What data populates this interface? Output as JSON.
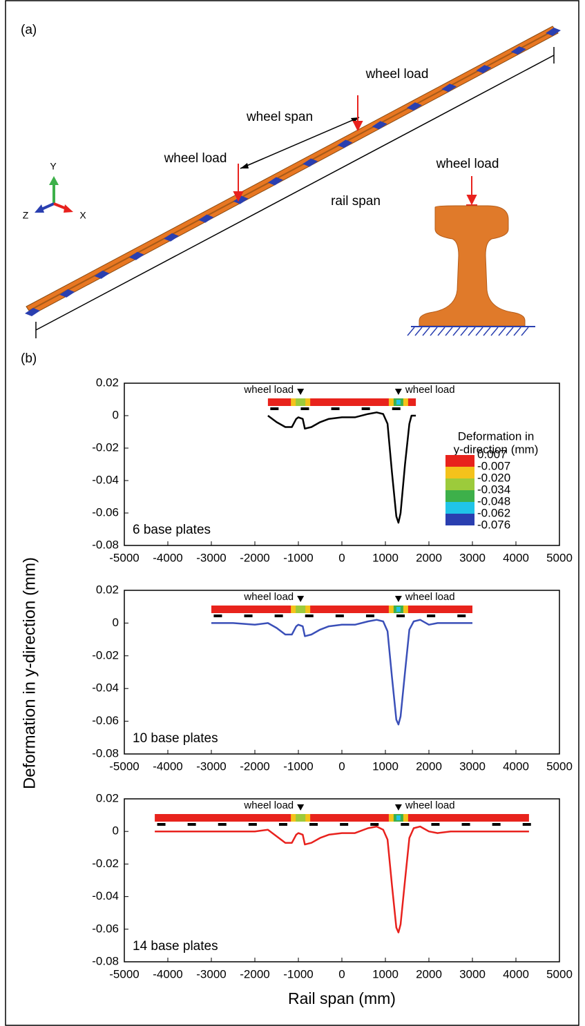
{
  "diagram": {
    "panel_label": "(a)",
    "labels": [
      "wheel load",
      "wheel span",
      "wheel load",
      "rail span",
      "wheel load"
    ],
    "axes": [
      "Y",
      "Z",
      "X"
    ]
  },
  "panel_b_label": "(b)",
  "figure": {
    "ylabel": "Deformation in y-direction (mm)",
    "xlabel": "Rail span (mm)"
  },
  "chart_data": [
    {
      "type": "line",
      "annotation": "6 base plates",
      "wheel_load_labels": [
        "wheel load",
        "wheel load"
      ],
      "x": [
        -1700,
        -1500,
        -1300,
        -1150,
        -1050,
        -1000,
        -900,
        -850,
        -700,
        -500,
        -300,
        0,
        300,
        600,
        800,
        950,
        1050,
        1150,
        1250,
        1300,
        1350,
        1450,
        1550,
        1600,
        1700
      ],
      "series": [
        {
          "color": "#000000",
          "values": [
            0,
            -0.004,
            -0.007,
            -0.007,
            -0.002,
            -0.001,
            -0.002,
            -0.008,
            -0.007,
            -0.004,
            -0.002,
            -0.001,
            -0.001,
            0.001,
            0.002,
            0.001,
            -0.005,
            -0.035,
            -0.062,
            -0.066,
            -0.06,
            -0.03,
            -0.005,
            0,
            0
          ]
        }
      ],
      "xlim": [
        -5000,
        5000
      ],
      "xticks": [
        -5000,
        -4000,
        -3000,
        -2000,
        -1000,
        0,
        1000,
        2000,
        3000,
        4000,
        5000
      ],
      "ylim": [
        -0.08,
        0.02
      ],
      "yticks": [
        -0.08,
        -0.06,
        -0.04,
        -0.02,
        0,
        0.02
      ],
      "legend": {
        "title": [
          "Deformation in",
          "y-direction (mm)"
        ],
        "levels": [
          0.007,
          -0.007,
          {
            "value": -0.02,
            "label": "-0.020"
          },
          -0.034,
          -0.048,
          -0.062,
          -0.076
        ],
        "colors": [
          "#e8231c",
          "#f4c21b",
          "#9ccb3b",
          "#3db04a",
          "#20c4e8",
          "#2a3fb0"
        ]
      }
    },
    {
      "type": "line",
      "annotation": "10 base plates",
      "wheel_load_labels": [
        "wheel load",
        "wheel load"
      ],
      "x": [
        -3000,
        -2500,
        -2000,
        -1700,
        -1500,
        -1300,
        -1150,
        -1050,
        -1000,
        -900,
        -850,
        -700,
        -500,
        -300,
        0,
        300,
        600,
        800,
        950,
        1050,
        1150,
        1250,
        1300,
        1350,
        1450,
        1550,
        1650,
        1800,
        2000,
        2200,
        2500,
        3000
      ],
      "series": [
        {
          "color": "#3a4fb8",
          "values": [
            0,
            0,
            -0.001,
            0,
            -0.003,
            -0.007,
            -0.007,
            -0.002,
            -0.001,
            -0.002,
            -0.008,
            -0.007,
            -0.004,
            -0.002,
            -0.001,
            -0.001,
            0.001,
            0.002,
            0.001,
            -0.005,
            -0.033,
            -0.059,
            -0.062,
            -0.057,
            -0.03,
            -0.004,
            0.001,
            0.002,
            -0.001,
            0,
            0,
            0
          ]
        }
      ],
      "xlim": [
        -5000,
        5000
      ],
      "xticks": [
        -5000,
        -4000,
        -3000,
        -2000,
        -1000,
        0,
        1000,
        2000,
        3000,
        4000,
        5000
      ],
      "ylim": [
        -0.08,
        0.02
      ],
      "yticks": [
        -0.08,
        -0.06,
        -0.04,
        -0.02,
        0,
        0.02
      ]
    },
    {
      "type": "line",
      "annotation": "14 base plates",
      "wheel_load_labels": [
        "wheel load",
        "wheel load"
      ],
      "x": [
        -4300,
        -3500,
        -2500,
        -2000,
        -1700,
        -1500,
        -1300,
        -1150,
        -1050,
        -1000,
        -900,
        -850,
        -700,
        -500,
        -300,
        0,
        300,
        600,
        800,
        950,
        1050,
        1150,
        1250,
        1300,
        1350,
        1450,
        1550,
        1650,
        1800,
        2000,
        2200,
        2500,
        3000,
        3500,
        4300
      ],
      "series": [
        {
          "color": "#e8211d",
          "values": [
            0,
            0,
            0,
            0,
            0.001,
            -0.003,
            -0.007,
            -0.007,
            -0.002,
            -0.001,
            -0.002,
            -0.008,
            -0.007,
            -0.004,
            -0.002,
            -0.001,
            -0.001,
            0.002,
            0.003,
            0.001,
            -0.005,
            -0.033,
            -0.059,
            -0.062,
            -0.057,
            -0.03,
            -0.004,
            0.002,
            0.003,
            0,
            -0.001,
            0,
            0,
            0,
            0
          ]
        }
      ],
      "xlim": [
        -5000,
        5000
      ],
      "xticks": [
        -5000,
        -4000,
        -3000,
        -2000,
        -1000,
        0,
        1000,
        2000,
        3000,
        4000,
        5000
      ],
      "ylim": [
        -0.08,
        0.02
      ],
      "yticks": [
        -0.08,
        -0.06,
        -0.04,
        -0.02,
        0,
        0.02
      ]
    }
  ]
}
